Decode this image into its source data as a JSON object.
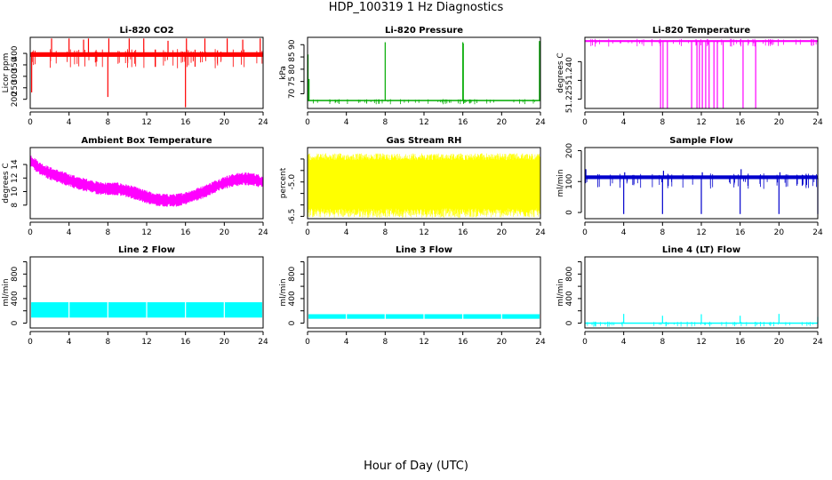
{
  "figure": {
    "title": "HDP_100319  1 Hz Diagnostics",
    "xlabel": "Hour of Day (UTC)"
  },
  "chart_data": [
    {
      "type": "line",
      "title": "Li-820 CO2",
      "ylabel": "Licor ppm",
      "color": "#ff0000",
      "xlim": [
        0,
        24
      ],
      "ylim": [
        160,
        470
      ],
      "xticks": [
        0,
        4,
        8,
        12,
        16,
        20,
        24
      ],
      "yticks": [
        200,
        250,
        300,
        350,
        400
      ],
      "baseline": 395,
      "band": [
        385,
        405
      ],
      "spikes": [
        {
          "x": 0.15,
          "y": 230
        },
        {
          "x": 2.2,
          "y": 465
        },
        {
          "x": 4.0,
          "y": 465
        },
        {
          "x": 5.5,
          "y": 460
        },
        {
          "x": 6.0,
          "y": 465
        },
        {
          "x": 8.0,
          "y": 210
        },
        {
          "x": 8.1,
          "y": 465
        },
        {
          "x": 10.2,
          "y": 465
        },
        {
          "x": 11.7,
          "y": 465
        },
        {
          "x": 14.2,
          "y": 455
        },
        {
          "x": 16.0,
          "y": 165
        },
        {
          "x": 16.1,
          "y": 465
        },
        {
          "x": 18.0,
          "y": 465
        },
        {
          "x": 20.3,
          "y": 465
        },
        {
          "x": 21.9,
          "y": 460
        },
        {
          "x": 23.7,
          "y": 465
        }
      ]
    },
    {
      "type": "line",
      "title": "Li-820 Pressure",
      "ylabel": "kPa",
      "color": "#00aa00",
      "xlim": [
        0,
        24
      ],
      "ylim": [
        64,
        93
      ],
      "xticks": [
        0,
        4,
        8,
        12,
        16,
        20,
        24
      ],
      "yticks": [
        70,
        75,
        80,
        85,
        90
      ],
      "baseline": 67.2,
      "band": [
        67.0,
        67.5
      ],
      "spikes": [
        {
          "x": 0.05,
          "y": 86
        },
        {
          "x": 0.15,
          "y": 76
        },
        {
          "x": 8.0,
          "y": 91
        },
        {
          "x": 16.0,
          "y": 91
        },
        {
          "x": 16.05,
          "y": 90.5
        },
        {
          "x": 23.9,
          "y": 91.5
        }
      ]
    },
    {
      "type": "line",
      "title": "Li-820 Temperature",
      "ylabel": "degrees C",
      "color": "#ff00ff",
      "xlim": [
        0,
        24
      ],
      "ylim": [
        51.22,
        51.258
      ],
      "xticks": [
        0,
        4,
        8,
        12,
        16,
        20,
        24
      ],
      "yticks": [
        51.225,
        51.235,
        51.245
      ],
      "ytick_labels": [
        "51.225",
        "51.240"
      ],
      "ytick_label_values": [
        51.225,
        51.24
      ],
      "baseline": 51.256,
      "band": [
        51.2555,
        51.2565
      ],
      "drops": [
        7.8,
        8.05,
        8.5,
        11.0,
        11.55,
        11.8,
        12.1,
        12.45,
        12.8,
        13.3,
        13.65,
        14.25,
        16.3,
        17.6
      ]
    },
    {
      "type": "line",
      "title": "Ambient Box Temperature",
      "ylabel": "degrees C",
      "color": "#ff00ff",
      "xlim": [
        0,
        24
      ],
      "ylim": [
        6,
        16.5
      ],
      "xticks": [
        0,
        4,
        8,
        12,
        16,
        20,
        24
      ],
      "yticks": [
        8,
        10,
        12,
        14
      ],
      "trend_x": [
        0,
        1,
        2,
        3,
        4,
        5,
        6,
        7,
        8,
        9,
        10,
        11,
        12,
        13,
        14,
        15,
        16,
        17,
        18,
        19,
        20,
        21,
        22,
        23,
        24
      ],
      "trend_y": [
        14.6,
        13.4,
        12.7,
        12.2,
        11.7,
        11.2,
        10.9,
        10.5,
        10.4,
        10.4,
        10.1,
        9.7,
        9.2,
        8.8,
        8.7,
        8.7,
        9.0,
        9.5,
        10.0,
        10.7,
        11.3,
        11.7,
        11.9,
        11.8,
        11.4
      ],
      "band_halfwidth": 0.8
    },
    {
      "type": "line",
      "title": "Gas Stream RH",
      "ylabel": "percent",
      "color": "#ffff00",
      "xlim": [
        0,
        24
      ],
      "ylim": [
        -6.6,
        -3.5
      ],
      "xticks": [
        0,
        4,
        8,
        12,
        16,
        20,
        24
      ],
      "yticks": [
        -6.5,
        -6.0,
        -5.5,
        -5.0,
        -4.5,
        -4.0
      ],
      "ytick_labels": [
        "-6.5",
        "-5.0"
      ],
      "ytick_label_values": [
        -6.5,
        -5.0
      ],
      "band": [
        -6.15,
        -4.05
      ],
      "outer": [
        -6.55,
        -3.75
      ]
    },
    {
      "type": "line",
      "title": "Sample Flow",
      "ylabel": "ml/min",
      "color": "#0000cc",
      "xlim": [
        0,
        24
      ],
      "ylim": [
        -20,
        210
      ],
      "xticks": [
        0,
        4,
        8,
        12,
        16,
        20,
        24
      ],
      "yticks": [
        0,
        100,
        200
      ],
      "baseline": 112,
      "band": [
        108,
        120
      ],
      "spikes": [
        {
          "x": 0.1,
          "y": 140
        },
        {
          "x": 4.0,
          "y": -5
        },
        {
          "x": 4.1,
          "y": 130
        },
        {
          "x": 8.0,
          "y": -5
        },
        {
          "x": 8.1,
          "y": 135
        },
        {
          "x": 12.0,
          "y": -5
        },
        {
          "x": 12.1,
          "y": 130
        },
        {
          "x": 16.0,
          "y": -5
        },
        {
          "x": 16.1,
          "y": 140
        },
        {
          "x": 20.0,
          "y": -5
        },
        {
          "x": 20.1,
          "y": 130
        },
        {
          "x": 24.0,
          "y": -5
        }
      ]
    },
    {
      "type": "area",
      "title": "Line 2 Flow",
      "ylabel": "ml/min",
      "color": "#00ffff",
      "xlim": [
        0,
        24
      ],
      "ylim": [
        -80,
        1080
      ],
      "xticks": [
        0,
        4,
        8,
        12,
        16,
        20,
        24
      ],
      "yticks": [
        0,
        200,
        400,
        600,
        800,
        1000
      ],
      "ytick_labels": [
        "0",
        "400",
        "800"
      ],
      "ytick_label_values": [
        0,
        400,
        800
      ],
      "band": [
        90,
        340
      ],
      "gaps": [
        4,
        8,
        12,
        16,
        20
      ]
    },
    {
      "type": "area",
      "title": "Line 3 Flow",
      "ylabel": "ml/min",
      "color": "#00ffff",
      "xlim": [
        0,
        24
      ],
      "ylim": [
        -80,
        1080
      ],
      "xticks": [
        0,
        4,
        8,
        12,
        16,
        20,
        24
      ],
      "yticks": [
        0,
        200,
        400,
        600,
        800,
        1000
      ],
      "ytick_labels": [
        "0",
        "400",
        "800"
      ],
      "ytick_label_values": [
        0,
        400,
        800
      ],
      "band": [
        70,
        145
      ],
      "gaps": [
        4,
        8,
        12,
        16,
        20
      ]
    },
    {
      "type": "line",
      "title": "Line 4 (LT) Flow",
      "ylabel": "ml/min",
      "color": "#00ffff",
      "xlim": [
        0,
        24
      ],
      "ylim": [
        -80,
        1080
      ],
      "xticks": [
        0,
        4,
        8,
        12,
        16,
        20,
        24
      ],
      "yticks": [
        0,
        200,
        400,
        600,
        800,
        1000
      ],
      "ytick_labels": [
        "0",
        "400",
        "800"
      ],
      "ytick_label_values": [
        0,
        400,
        800
      ],
      "baseline": 0,
      "band": [
        -10,
        10
      ],
      "spikes": [
        {
          "x": 4.0,
          "y": 150
        },
        {
          "x": 8.0,
          "y": 120
        },
        {
          "x": 12.0,
          "y": 145
        },
        {
          "x": 16.0,
          "y": 120
        },
        {
          "x": 20.0,
          "y": 150
        },
        {
          "x": 24.0,
          "y": 100
        }
      ]
    }
  ]
}
